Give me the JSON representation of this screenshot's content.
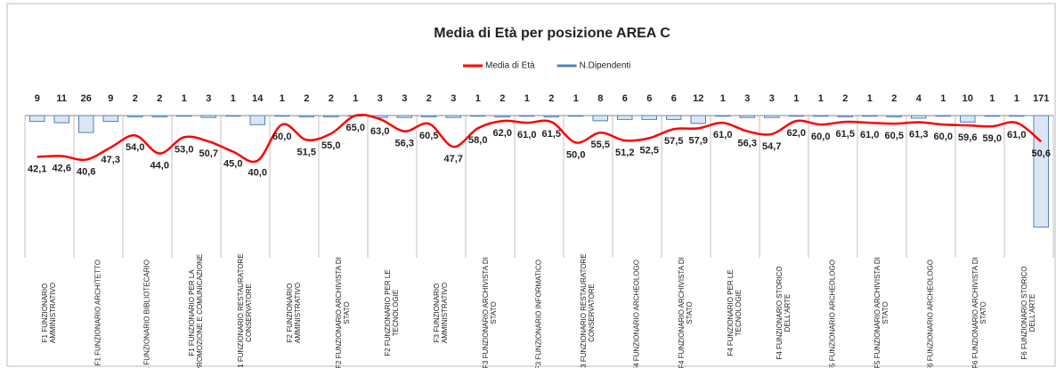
{
  "chart_data": {
    "type": "bar-line",
    "title": "Media di Età per posizione AREA C",
    "categories": [
      "F1 FUNZIONARIO AMMINISTRATIVO",
      null,
      "F1 FUNZIONARIO ARCHITETTO",
      null,
      "F1 FUNZIONARIO BIBLIOTECARIO",
      null,
      "F1 FUNZIONARIO PER LA PROMOZIONE E COMUNICAZIONE",
      null,
      "F1 FUNZIONARIO RESTAURATORE CONSERVATORE",
      null,
      "F2 FUNZIONARIO AMMINISTRATIVO",
      null,
      "F2 FUNZIONARIO ARCHIVISTA DI STATO",
      null,
      "F2 FUNZIONARIO PER LE TECNOLOGIE",
      null,
      "F3 FUNZIONARIO AMMINISTRATIVO",
      null,
      "F3 FUNZIONARIO ARCHIVISTA DI STATO",
      null,
      "F3 FUNZIONARIO INFORMATICO",
      null,
      "F3 FUNZIONARIO RESTAURATORE CONSERVATORE",
      null,
      "F4 FUNZIONARIO ARCHEOLOGO",
      null,
      "F4 FUNZIONARIO ARCHIVISTA DI STATO",
      null,
      "F4 FUNZIONARIO PER LE TECNOLOGIE",
      null,
      "F4 FUNZIONARIO STORICO DELL'ARTE",
      null,
      "F5 FUNZIONARIO ARCHEOLOGO",
      null,
      "F5 FUNZIONARIO ARCHIVISTA DI STATO",
      null,
      "F6 FUNZIONARIO ARCHEOLOGO",
      null,
      "F6 FUNZIONARIO ARCHIVISTA DI STATO",
      null,
      "F6 FUNZIONARIO STORICO DELL'ARTE",
      null
    ],
    "series": [
      {
        "name": "Media di Età",
        "type": "line",
        "color": "#ff0000",
        "values": [
          42.1,
          42.6,
          40.6,
          47.3,
          54.0,
          44.0,
          53.0,
          50.7,
          45.0,
          40.0,
          60.0,
          51.5,
          55.0,
          65.0,
          63.0,
          56.3,
          60.5,
          47.7,
          58.0,
          62.0,
          61.0,
          61.5,
          50.0,
          55.5,
          51.2,
          52.5,
          57.5,
          57.9,
          61.0,
          56.3,
          54.7,
          62.0,
          60.0,
          61.5,
          61.0,
          60.5,
          61.3,
          60.0,
          59.6,
          59.0,
          61.0,
          50.6
        ],
        "value_labels": [
          "42,1",
          "42,6",
          "40,6",
          "47,3",
          "54,0",
          "44,0",
          "53,0",
          "50,7",
          "45,0",
          "40,0",
          "60,0",
          "51,5",
          "55,0",
          "65,0",
          "63,0",
          "56,3",
          "60,5",
          "47,7",
          "58,0",
          "62,0",
          "61,0",
          "61,5",
          "50,0",
          "55,5",
          "51,2",
          "52,5",
          "57,5",
          "57,9",
          "61,0",
          "56,3",
          "54,7",
          "62,0",
          "60,0",
          "61,5",
          "61,0",
          "60,5",
          "61,3",
          "60,0",
          "59,6",
          "59,0",
          "61,0",
          "50,6"
        ]
      },
      {
        "name": "N.Dipendenti",
        "type": "bar",
        "axis": "y2",
        "color": "#4f81bd",
        "values": [
          9,
          11,
          26,
          9,
          2,
          2,
          1,
          3,
          1,
          14,
          1,
          2,
          2,
          1,
          3,
          3,
          2,
          3,
          1,
          2,
          1,
          2,
          1,
          8,
          6,
          6,
          6,
          12,
          1,
          3,
          3,
          1,
          1,
          2,
          1,
          2,
          4,
          1,
          10,
          1,
          1,
          171
        ]
      }
    ],
    "ylim": [
      0,
      65
    ],
    "y2lim": [
      0,
      180
    ],
    "y2_reversed": true,
    "legend": "top"
  }
}
